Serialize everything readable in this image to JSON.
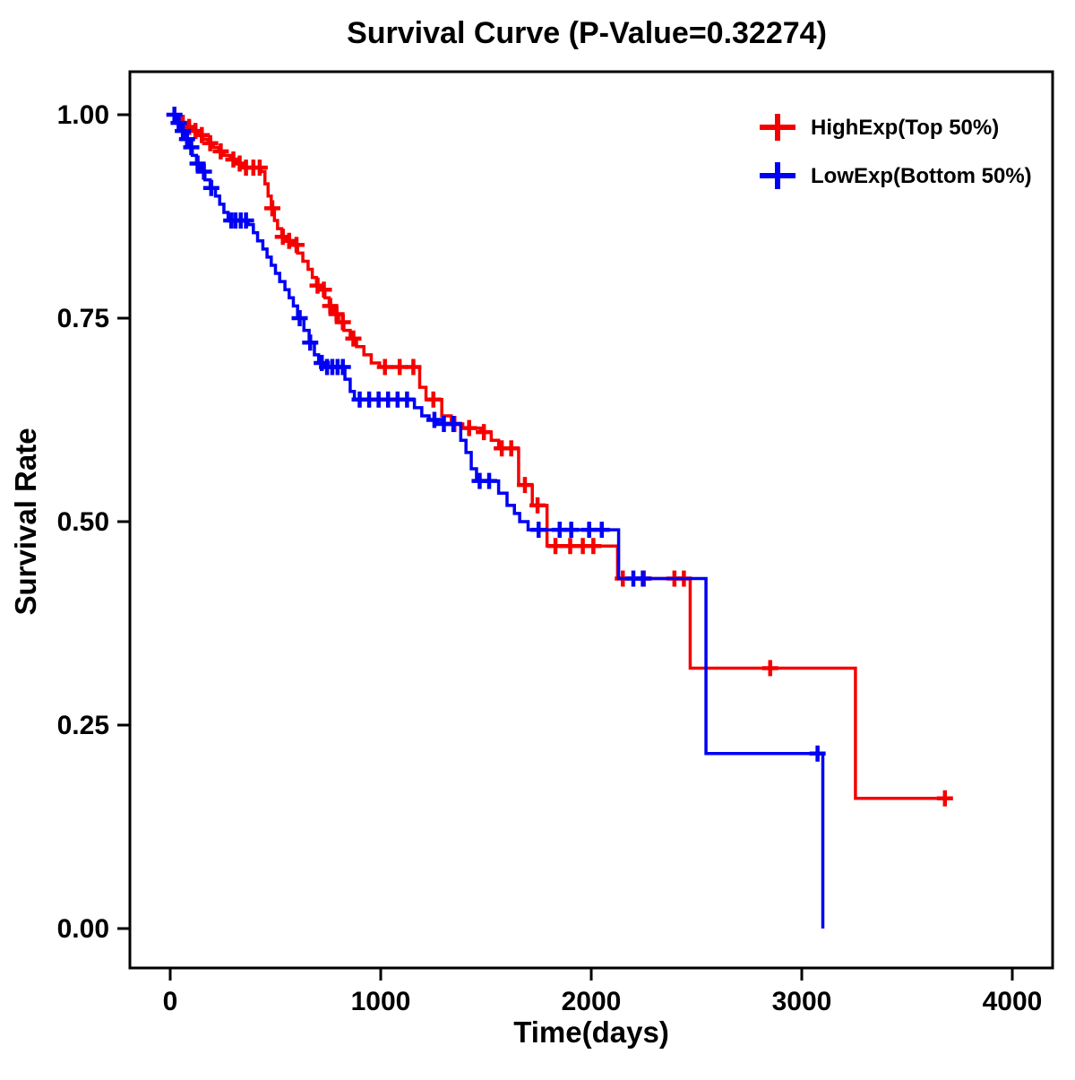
{
  "chart_data": {
    "type": "line",
    "subtype": "kaplan-meier-step",
    "title": "Survival Curve (P-Value=0.32274)",
    "p_value": 0.32274,
    "xlabel": "Time(days)",
    "ylabel": "Survival Rate",
    "xlim": [
      0,
      4000
    ],
    "ylim": [
      0.0,
      1.0
    ],
    "x_ticks": [
      0,
      1000,
      2000,
      3000,
      4000
    ],
    "y_ticks": [
      0.0,
      0.25,
      0.5,
      0.75,
      1.0
    ],
    "y_tick_labels": [
      "0.00",
      "0.25",
      "0.50",
      "0.75",
      "1.00"
    ],
    "grid": false,
    "legend_position": "top-right",
    "series": [
      {
        "id": "highexp",
        "name": "HighExp(Top 50%)",
        "color": "#f50000",
        "steps": [
          [
            0,
            1.0
          ],
          [
            30,
            0.995
          ],
          [
            55,
            0.99
          ],
          [
            80,
            0.985
          ],
          [
            105,
            0.98
          ],
          [
            130,
            0.975
          ],
          [
            155,
            0.97
          ],
          [
            180,
            0.965
          ],
          [
            205,
            0.96
          ],
          [
            230,
            0.955
          ],
          [
            255,
            0.95
          ],
          [
            285,
            0.945
          ],
          [
            315,
            0.94
          ],
          [
            345,
            0.935
          ],
          [
            430,
            0.93
          ],
          [
            450,
            0.915
          ],
          [
            465,
            0.9
          ],
          [
            480,
            0.885
          ],
          [
            495,
            0.87
          ],
          [
            510,
            0.86
          ],
          [
            530,
            0.85
          ],
          [
            555,
            0.845
          ],
          [
            580,
            0.84
          ],
          [
            605,
            0.83
          ],
          [
            630,
            0.82
          ],
          [
            655,
            0.81
          ],
          [
            675,
            0.8
          ],
          [
            695,
            0.79
          ],
          [
            715,
            0.785
          ],
          [
            735,
            0.775
          ],
          [
            755,
            0.765
          ],
          [
            775,
            0.755
          ],
          [
            800,
            0.745
          ],
          [
            825,
            0.735
          ],
          [
            855,
            0.725
          ],
          [
            885,
            0.715
          ],
          [
            920,
            0.705
          ],
          [
            955,
            0.695
          ],
          [
            995,
            0.69
          ],
          [
            1185,
            0.665
          ],
          [
            1215,
            0.65
          ],
          [
            1290,
            0.63
          ],
          [
            1335,
            0.62
          ],
          [
            1390,
            0.615
          ],
          [
            1475,
            0.61
          ],
          [
            1525,
            0.6
          ],
          [
            1560,
            0.59
          ],
          [
            1655,
            0.545
          ],
          [
            1720,
            0.52
          ],
          [
            1790,
            0.47
          ],
          [
            2125,
            0.43
          ],
          [
            2470,
            0.32
          ],
          [
            3255,
            0.16
          ],
          [
            3700,
            0.16
          ]
        ],
        "censor_times": [
          60,
          90,
          120,
          150,
          190,
          240,
          300,
          330,
          360,
          395,
          425,
          485,
          535,
          565,
          600,
          700,
          730,
          760,
          790,
          820,
          870,
          1020,
          1090,
          1155,
          1250,
          1350,
          1420,
          1490,
          1575,
          1620,
          1685,
          1745,
          1830,
          1900,
          1960,
          2010,
          2150,
          2250,
          2395,
          2440,
          2850,
          3680
        ]
      },
      {
        "id": "lowexp",
        "name": "LowExp(Bottom 50%)",
        "color": "#0000f5",
        "steps": [
          [
            0,
            1.0
          ],
          [
            25,
            0.99
          ],
          [
            45,
            0.98
          ],
          [
            65,
            0.97
          ],
          [
            85,
            0.96
          ],
          [
            105,
            0.95
          ],
          [
            125,
            0.94
          ],
          [
            145,
            0.93
          ],
          [
            165,
            0.92
          ],
          [
            190,
            0.91
          ],
          [
            215,
            0.9
          ],
          [
            235,
            0.89
          ],
          [
            255,
            0.88
          ],
          [
            275,
            0.87
          ],
          [
            370,
            0.865
          ],
          [
            395,
            0.855
          ],
          [
            415,
            0.845
          ],
          [
            440,
            0.835
          ],
          [
            460,
            0.825
          ],
          [
            480,
            0.815
          ],
          [
            500,
            0.805
          ],
          [
            520,
            0.795
          ],
          [
            545,
            0.785
          ],
          [
            565,
            0.775
          ],
          [
            585,
            0.765
          ],
          [
            605,
            0.75
          ],
          [
            635,
            0.735
          ],
          [
            660,
            0.72
          ],
          [
            685,
            0.705
          ],
          [
            705,
            0.695
          ],
          [
            730,
            0.69
          ],
          [
            830,
            0.675
          ],
          [
            855,
            0.66
          ],
          [
            875,
            0.65
          ],
          [
            1160,
            0.64
          ],
          [
            1195,
            0.63
          ],
          [
            1230,
            0.625
          ],
          [
            1270,
            0.62
          ],
          [
            1380,
            0.6
          ],
          [
            1405,
            0.585
          ],
          [
            1430,
            0.565
          ],
          [
            1455,
            0.55
          ],
          [
            1560,
            0.535
          ],
          [
            1600,
            0.52
          ],
          [
            1635,
            0.51
          ],
          [
            1660,
            0.5
          ],
          [
            1700,
            0.49
          ],
          [
            2130,
            0.43
          ],
          [
            2545,
            0.215
          ],
          [
            3100,
            0.0
          ]
        ],
        "censor_times": [
          20,
          40,
          60,
          80,
          100,
          130,
          160,
          195,
          290,
          310,
          335,
          360,
          615,
          665,
          720,
          745,
          770,
          795,
          820,
          900,
          945,
          990,
          1035,
          1080,
          1125,
          1255,
          1300,
          1345,
          1470,
          1515,
          1750,
          1850,
          1905,
          1990,
          2050,
          2200,
          2245,
          3075
        ]
      }
    ]
  }
}
